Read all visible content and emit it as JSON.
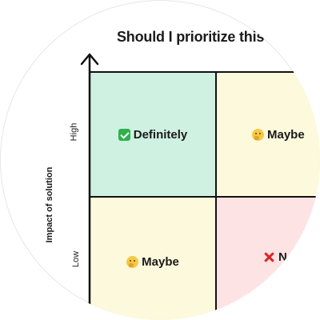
{
  "diagram": {
    "title": "Should I prioritize this",
    "y_axis_label": "Impact of solution",
    "y_ticks": {
      "high": "High",
      "low": "Low"
    },
    "quadrants": {
      "top_left": {
        "label": "Definitely",
        "icon": "check-mark-icon",
        "color": "#cff1e1"
      },
      "top_right": {
        "label": "Maybe",
        "icon": "thinking-face-icon",
        "color": "#fdf9dc"
      },
      "bottom_left": {
        "label": "Maybe",
        "icon": "thinking-face-icon",
        "color": "#fdf9dc"
      },
      "bottom_right": {
        "label": "N",
        "icon": "cross-mark-icon",
        "color": "#fde3e3"
      }
    }
  }
}
